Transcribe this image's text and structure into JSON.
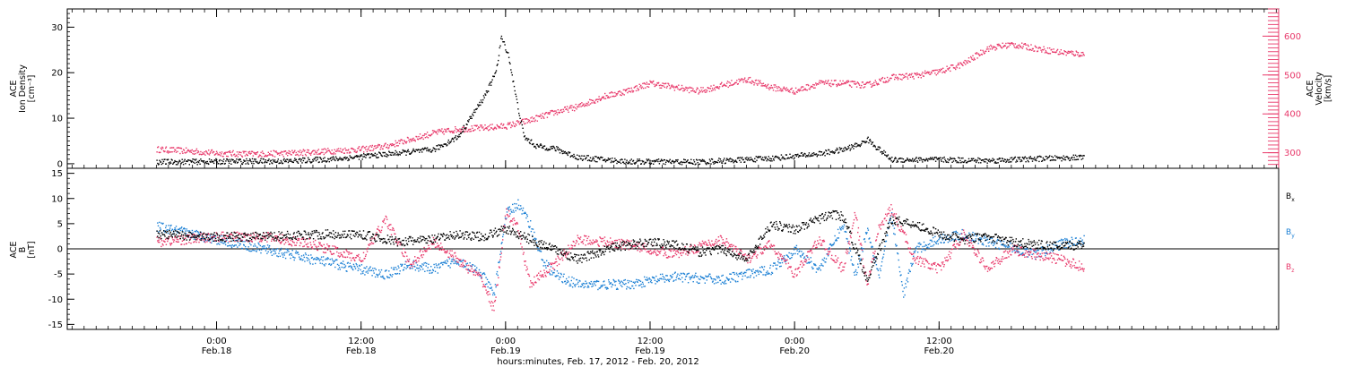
{
  "colors": {
    "black": "#000000",
    "pink": "#e8386a",
    "blue": "#1a7fd4",
    "frame": "#000000"
  },
  "chart_data": [
    {
      "type": "scatter",
      "panel": "top",
      "left_axis": {
        "label_lines": [
          "ACE",
          "Ion Density",
          "[cm⁻³]"
        ],
        "ylim": [
          -1,
          34
        ],
        "major_ticks": [
          0,
          10,
          20,
          30
        ],
        "tick_labels": [
          "0",
          "10",
          "20",
          "30"
        ],
        "minor_step": 1
      },
      "right_axis": {
        "label_lines": [
          "ACE",
          "Velocity",
          "[km/s]"
        ],
        "ylim": [
          260,
          670
        ],
        "major_ticks": [
          300,
          400,
          500,
          600
        ],
        "tick_labels": [
          "300",
          "400",
          "500",
          "600"
        ],
        "minor_step": 10
      },
      "series": [
        {
          "color": "black",
          "axis": "left",
          "x": [
            -5,
            0,
            6,
            10,
            14,
            18,
            20,
            21,
            22,
            22.8,
            23.3,
            23.6,
            24.2,
            24.8,
            25.5,
            26.5,
            28,
            30,
            34,
            40,
            46,
            50,
            52,
            53.5,
            54,
            56,
            60,
            64,
            68,
            72
          ],
          "y": [
            0.5,
            0.6,
            0.7,
            1.2,
            2.2,
            3.2,
            6,
            10,
            14,
            18,
            22,
            28,
            24,
            15,
            6,
            4,
            3.5,
            1.5,
            0.6,
            0.5,
            1.3,
            2.3,
            3.2,
            4.5,
            5.5,
            1,
            1,
            0.8,
            1.2,
            1.5
          ]
        },
        {
          "color": "pink",
          "axis": "right",
          "x": [
            -5,
            -2,
            0,
            3,
            6,
            9,
            12,
            14,
            16,
            18,
            20,
            22,
            24,
            26,
            28,
            30,
            32,
            34,
            36,
            38,
            40,
            42,
            44,
            46,
            48,
            50,
            52,
            54,
            56,
            58,
            60,
            62,
            64,
            66,
            68,
            70,
            72
          ],
          "y": [
            310,
            305,
            300,
            298,
            300,
            305,
            310,
            318,
            335,
            352,
            362,
            365,
            370,
            385,
            405,
            420,
            445,
            460,
            480,
            470,
            460,
            475,
            490,
            470,
            460,
            480,
            480,
            475,
            495,
            500,
            510,
            530,
            570,
            580,
            570,
            560,
            555
          ]
        }
      ]
    },
    {
      "type": "scatter",
      "panel": "bottom",
      "left_axis": {
        "label_lines": [
          "ACE",
          "B",
          "[nT]"
        ],
        "ylim": [
          -16,
          16
        ],
        "major_ticks": [
          -15,
          -10,
          -5,
          0,
          5,
          10,
          15
        ],
        "tick_labels": [
          "-15",
          "-10",
          "-5",
          "0",
          "5",
          "10",
          "15"
        ],
        "minor_step": 1
      },
      "zero_line": true,
      "series": [
        {
          "name": "Bₓ",
          "color": "black",
          "x": [
            -5,
            0,
            4,
            8,
            12,
            15,
            18,
            20,
            22,
            24,
            26,
            28,
            30,
            33,
            36,
            38,
            40,
            42,
            44,
            46,
            48,
            50,
            51,
            52,
            54,
            56,
            58,
            60,
            62,
            64,
            66,
            68,
            70,
            72
          ],
          "y": [
            3,
            2.5,
            2.5,
            3,
            3,
            1.5,
            2,
            3,
            2.5,
            4,
            2,
            0,
            -2,
            0.5,
            1.5,
            1,
            -0.5,
            0,
            -2,
            5,
            4,
            6,
            7,
            6.5,
            -6,
            6,
            5,
            3,
            2,
            2.5,
            1.5,
            1,
            0.5,
            1
          ]
        },
        {
          "name": "Bᵧ",
          "color": "blue",
          "x": [
            -5,
            -2,
            0,
            2,
            4,
            8,
            12,
            14,
            16,
            18,
            20,
            22,
            23,
            24,
            25,
            26,
            27,
            28,
            30,
            34,
            38,
            42,
            44,
            46,
            48,
            50,
            52,
            53,
            54,
            55,
            56,
            57,
            58,
            60,
            62,
            64,
            66,
            68,
            70,
            72
          ],
          "y": [
            4.5,
            3,
            2,
            1,
            0,
            -2,
            -4,
            -5,
            -3,
            -4,
            -2,
            -5,
            -9,
            7,
            9,
            5,
            -2,
            -5,
            -7,
            -7,
            -5.5,
            -6,
            -5,
            -4,
            0,
            -4,
            5,
            -5,
            4,
            -5,
            7,
            -9,
            0,
            2,
            3,
            1.5,
            0.5,
            -1,
            1,
            2
          ]
        },
        {
          "name": "B_z",
          "color": "pink",
          "x": [
            -5,
            0,
            4,
            8,
            12,
            14,
            16,
            18,
            20,
            22,
            23,
            24,
            25,
            26,
            28,
            30,
            34,
            38,
            42,
            44,
            46,
            48,
            50,
            52,
            53,
            54,
            55,
            56,
            58,
            60,
            62,
            64,
            66,
            68,
            70,
            72
          ],
          "y": [
            1.5,
            2.5,
            2.5,
            1,
            -2,
            6,
            -3,
            1.5,
            -2,
            -6,
            -12,
            7.5,
            4,
            -7,
            -3,
            2,
            1,
            -1,
            2,
            -2,
            1,
            -5,
            2,
            -4,
            7,
            -7,
            4.5,
            8,
            -2,
            -4,
            3,
            -4,
            0,
            -1,
            -2,
            -3.5
          ]
        }
      ],
      "legend": [
        {
          "label": "B",
          "sub": "x",
          "color": "black"
        },
        {
          "label": "B",
          "sub": "y",
          "color": "blue"
        },
        {
          "label": "B",
          "sub": "z",
          "color": "pink"
        }
      ]
    }
  ],
  "xaxis": {
    "xlim": [
      -12.4,
      88.2
    ],
    "title": "hours:minutes, Feb. 17, 2012 - Feb. 20, 2012",
    "major_ticks": [
      {
        "x": 0,
        "time": "0:00",
        "date": "Feb.18"
      },
      {
        "x": 12,
        "time": "12:00",
        "date": "Feb.18"
      },
      {
        "x": 24,
        "time": "0:00",
        "date": "Feb.19"
      },
      {
        "x": 36,
        "time": "12:00",
        "date": "Feb.19"
      },
      {
        "x": 48,
        "time": "0:00",
        "date": "Feb.20"
      },
      {
        "x": 60,
        "time": "12:00",
        "date": "Feb.20"
      }
    ],
    "minor_step": 1
  }
}
